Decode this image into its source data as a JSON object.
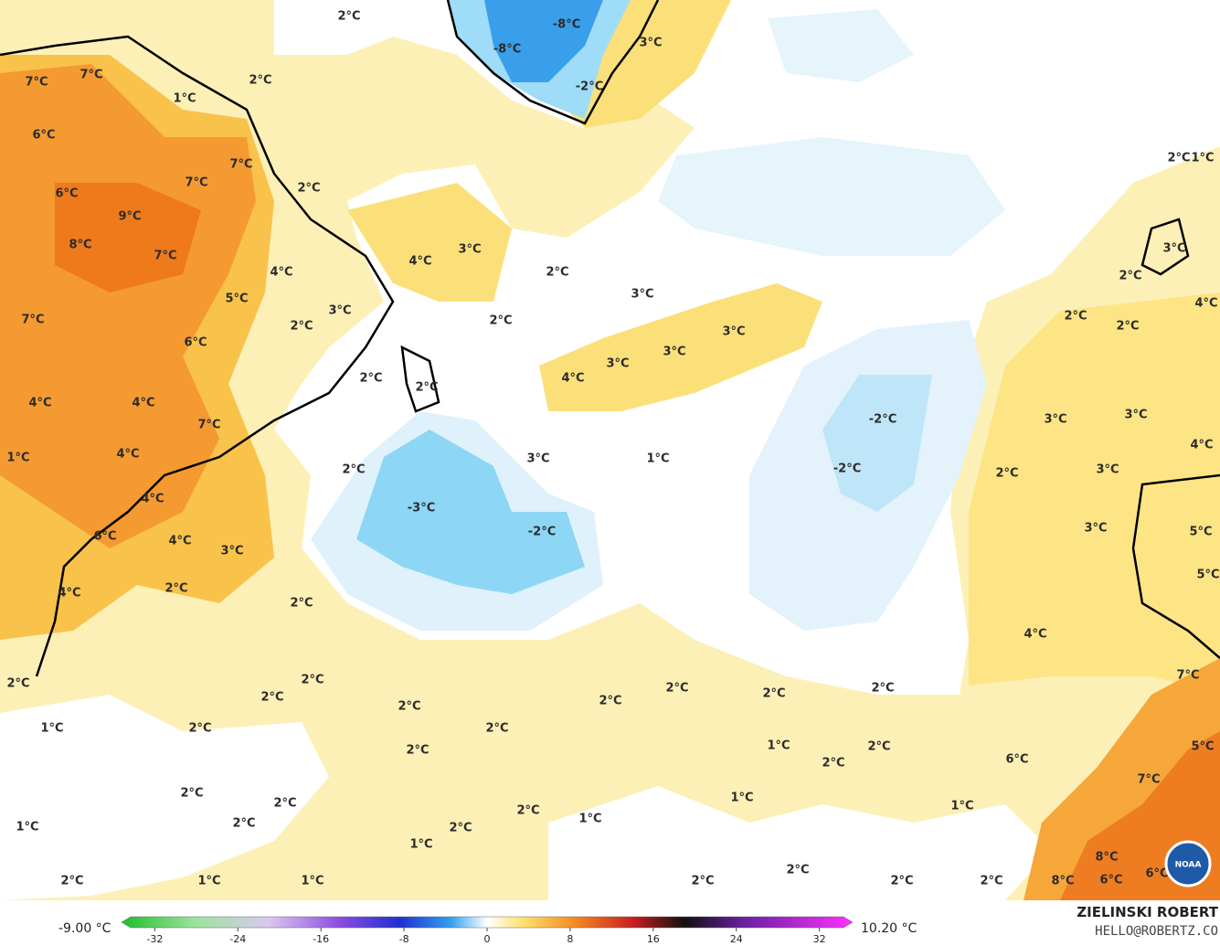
{
  "map": {
    "labels": [
      "2°C",
      "-8°C",
      "-8°C",
      "3°C",
      "-2°C",
      "7°C",
      "7°C",
      "2°C",
      "1°C",
      "6°C",
      "7°C",
      "7°C",
      "2°C",
      "2°C",
      "1°C",
      "6°C",
      "9°C",
      "8°C",
      "7°C",
      "4°C",
      "3°C",
      "3°C",
      "4°C",
      "2°C",
      "2°C",
      "5°C",
      "3°C",
      "3°C",
      "4°C",
      "7°C",
      "2°C",
      "2°C",
      "2°C",
      "2°C",
      "6°C",
      "3°C",
      "3°C",
      "3°C",
      "4°C",
      "2°C",
      "2°C",
      "4°C",
      "4°C",
      "-2°C",
      "3°C",
      "3°C",
      "7°C",
      "4°C",
      "1°C",
      "4°C",
      "3°C",
      "1°C",
      "2°C",
      "-2°C",
      "2°C",
      "3°C",
      "4°C",
      "-3°C",
      "3°C",
      "5°C",
      "-2°C",
      "6°C",
      "4°C",
      "3°C",
      "5°C",
      "2°C",
      "4°C",
      "2°C",
      "4°C",
      "7°C",
      "2°C",
      "2°C",
      "2°C",
      "2°C",
      "2°C",
      "2°C",
      "2°C",
      "2°C",
      "1°C",
      "2°C",
      "2°C",
      "1°C",
      "2°C",
      "2°C",
      "2°C",
      "6°C",
      "7°C",
      "5°C",
      "2°C",
      "1°C",
      "2°C",
      "1°C",
      "2°C",
      "1°C",
      "2°C",
      "1°C",
      "2°C",
      "1°C",
      "8°C",
      "2°C",
      "6°C",
      "6°C",
      "8°C",
      "2°C",
      "1°C",
      "1°C",
      "2°C",
      "2°C",
      "2°C"
    ]
  },
  "colorbar": {
    "min_label": "-9.00 °C",
    "max_label": "10.20 °C",
    "range": [
      -35.2,
      35.2
    ],
    "ticks": [
      -32,
      -24,
      -16,
      -8,
      0,
      8,
      16,
      24,
      32
    ]
  },
  "credit": {
    "name": "ZIELINSKI ROBERT",
    "email": "HELLO@ROBERTZ.CO",
    "logo": "NOAA"
  }
}
